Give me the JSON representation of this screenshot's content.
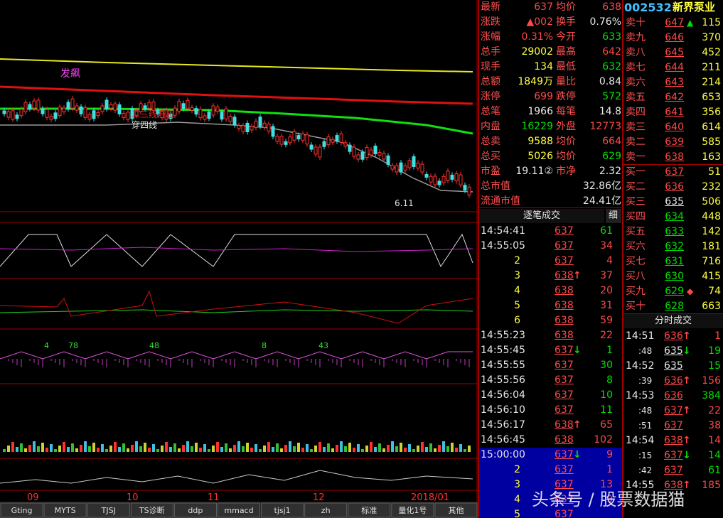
{
  "stock": {
    "code": "002532",
    "name": "新界泵业"
  },
  "quote": [
    [
      {
        "t": "最新"
      },
      {
        "t": "637",
        "c": "r"
      },
      {
        "t": "均价"
      },
      {
        "t": "638",
        "c": "r"
      }
    ],
    [
      {
        "t": "涨跌"
      },
      {
        "t": "▲002",
        "c": "r"
      },
      {
        "t": "换手"
      },
      {
        "t": "0.76%",
        "c": "w"
      }
    ],
    [
      {
        "t": "涨幅"
      },
      {
        "t": "0.31%",
        "c": "r"
      },
      {
        "t": "今开"
      },
      {
        "t": "633",
        "c": "g"
      }
    ],
    [
      {
        "t": "总手"
      },
      {
        "t": "29002",
        "c": "y"
      },
      {
        "t": "最高"
      },
      {
        "t": "642",
        "c": "r"
      }
    ],
    [
      {
        "t": "现手"
      },
      {
        "t": "134",
        "c": "y"
      },
      {
        "t": "最低"
      },
      {
        "t": "632",
        "c": "g"
      }
    ],
    [
      {
        "t": "总额"
      },
      {
        "t": "1849万",
        "c": "y"
      },
      {
        "t": "量比"
      },
      {
        "t": "0.84",
        "c": "w"
      }
    ],
    [
      {
        "t": "涨停"
      },
      {
        "t": "699",
        "c": "r"
      },
      {
        "t": "跌停"
      },
      {
        "t": "572",
        "c": "g"
      }
    ],
    [
      {
        "t": "总笔"
      },
      {
        "t": "1966",
        "c": "w"
      },
      {
        "t": "每笔"
      },
      {
        "t": "14.8",
        "c": "w"
      }
    ],
    [
      {
        "t": "内盘"
      },
      {
        "t": "16229",
        "c": "g"
      },
      {
        "t": "外盘"
      },
      {
        "t": "12773",
        "c": "r"
      }
    ],
    [
      {
        "t": "总卖"
      },
      {
        "t": "9588",
        "c": "y"
      },
      {
        "t": "均价"
      },
      {
        "t": "664",
        "c": "r"
      }
    ],
    [
      {
        "t": "总买"
      },
      {
        "t": "5026",
        "c": "y"
      },
      {
        "t": "均价"
      },
      {
        "t": "629",
        "c": "g"
      }
    ],
    [
      {
        "t": "市盈"
      },
      {
        "t": "19.11②",
        "c": "w"
      },
      {
        "t": "市净"
      },
      {
        "t": "2.32",
        "c": "w"
      }
    ],
    [
      {
        "t": "总市值"
      },
      {
        "t": "32.86亿",
        "c": "w"
      }
    ],
    [
      {
        "t": "流通市值"
      },
      {
        "t": "24.41亿",
        "c": "w"
      }
    ]
  ],
  "order_book": [
    {
      "name": "卖十",
      "price": "647",
      "c": "r",
      "mark": {
        "t": "▲",
        "c": "g"
      },
      "vol": "115"
    },
    {
      "name": "卖九",
      "price": "646",
      "c": "r",
      "vol": "370"
    },
    {
      "name": "卖八",
      "price": "645",
      "c": "r",
      "vol": "452"
    },
    {
      "name": "卖七",
      "price": "644",
      "c": "r",
      "vol": "211"
    },
    {
      "name": "卖六",
      "price": "643",
      "c": "r",
      "vol": "214"
    },
    {
      "name": "卖五",
      "price": "642",
      "c": "r",
      "vol": "653"
    },
    {
      "name": "卖四",
      "price": "641",
      "c": "r",
      "vol": "356"
    },
    {
      "name": "卖三",
      "price": "640",
      "c": "r",
      "vol": "614"
    },
    {
      "name": "卖二",
      "price": "639",
      "c": "r",
      "vol": "585"
    },
    {
      "name": "卖一",
      "price": "638",
      "c": "r",
      "vol": "163"
    },
    {
      "name": "买一",
      "price": "637",
      "c": "r",
      "vol": "51"
    },
    {
      "name": "买二",
      "price": "636",
      "c": "r",
      "vol": "232"
    },
    {
      "name": "买三",
      "price": "635",
      "c": "w",
      "vol": "506"
    },
    {
      "name": "买四",
      "price": "634",
      "c": "g",
      "vol": "448"
    },
    {
      "name": "买五",
      "price": "633",
      "c": "g",
      "vol": "142"
    },
    {
      "name": "买六",
      "price": "632",
      "c": "g",
      "vol": "181"
    },
    {
      "name": "买七",
      "price": "631",
      "c": "g",
      "vol": "716"
    },
    {
      "name": "买八",
      "price": "630",
      "c": "g",
      "vol": "415"
    },
    {
      "name": "买九",
      "price": "629",
      "c": "g",
      "mark": {
        "t": "◆",
        "c": "r"
      },
      "vol": "74"
    },
    {
      "name": "买十",
      "price": "628",
      "c": "g",
      "vol": "663"
    }
  ],
  "tick_header": {
    "title": "逐笔成交",
    "tab": "细"
  },
  "ticks": [
    {
      "time": "14:54:41",
      "price": "637",
      "c": "r",
      "vol": "61",
      "vc": "g"
    },
    {
      "time": "14:55:05",
      "price": "637",
      "c": "r",
      "vol": "34",
      "vc": "r"
    },
    {
      "time": "2",
      "price": "637",
      "c": "r",
      "vol": "4",
      "vc": "r"
    },
    {
      "time": "3",
      "price": "638",
      "c": "r",
      "arrow": {
        "t": "↑",
        "c": "r"
      },
      "vol": "37",
      "vc": "r"
    },
    {
      "time": "4",
      "price": "638",
      "c": "r",
      "vol": "20",
      "vc": "r"
    },
    {
      "time": "5",
      "price": "638",
      "c": "r",
      "vol": "31",
      "vc": "r"
    },
    {
      "time": "6",
      "price": "638",
      "c": "r",
      "vol": "59",
      "vc": "r"
    },
    {
      "time": "14:55:23",
      "price": "638",
      "c": "r",
      "vol": "22",
      "vc": "r"
    },
    {
      "time": "14:55:45",
      "price": "637",
      "c": "r",
      "arrow": {
        "t": "↓",
        "c": "g"
      },
      "vol": "1",
      "vc": "g"
    },
    {
      "time": "14:55:55",
      "price": "637",
      "c": "r",
      "vol": "30",
      "vc": "g"
    },
    {
      "time": "14:55:56",
      "price": "637",
      "c": "r",
      "vol": "8",
      "vc": "g"
    },
    {
      "time": "14:56:04",
      "price": "637",
      "c": "r",
      "vol": "10",
      "vc": "g"
    },
    {
      "time": "14:56:10",
      "price": "637",
      "c": "r",
      "vol": "11",
      "vc": "g"
    },
    {
      "time": "14:56:17",
      "price": "638",
      "c": "r",
      "arrow": {
        "t": "↑",
        "c": "r"
      },
      "vol": "65",
      "vc": "r"
    },
    {
      "time": "14:56:45",
      "price": "638",
      "c": "r",
      "vol": "102",
      "vc": "r"
    },
    {
      "time": "15:00:00",
      "price": "637",
      "c": "r",
      "arrow": {
        "t": "↓",
        "c": "g"
      },
      "vol": "9",
      "vc": "r",
      "hl": true
    },
    {
      "time": "2",
      "price": "637",
      "c": "r",
      "vol": "1",
      "vc": "r",
      "hl": true
    },
    {
      "time": "3",
      "price": "637",
      "c": "r",
      "vol": "13",
      "vc": "r",
      "hl": true
    },
    {
      "time": "4",
      "price": "637",
      "c": "r",
      "vol": "9",
      "vc": "r",
      "hl": true
    },
    {
      "time": "5",
      "price": "637",
      "c": "r",
      "hl": true
    }
  ],
  "minute_header": {
    "title": "分时成交"
  },
  "minute": [
    {
      "time": "14:51",
      "price": "636",
      "c": "r",
      "arrow": {
        "t": "↑",
        "c": "r"
      },
      "vol": "1",
      "vc": "r"
    },
    {
      "time": ":48",
      "price": "635",
      "c": "w",
      "arrow": {
        "t": "↓",
        "c": "g"
      },
      "vol": "19",
      "vc": "g"
    },
    {
      "time": "14:52",
      "price": "635",
      "c": "w",
      "vol": "15",
      "vc": "g"
    },
    {
      "time": ":39",
      "price": "636",
      "c": "r",
      "arrow": {
        "t": "↑",
        "c": "r"
      },
      "vol": "156",
      "vc": "r"
    },
    {
      "time": "14:53",
      "price": "636",
      "c": "r",
      "vol": "384",
      "vc": "g"
    },
    {
      "time": ":48",
      "price": "637",
      "c": "r",
      "arrow": {
        "t": "↑",
        "c": "r"
      },
      "vol": "22",
      "vc": "r"
    },
    {
      "time": ":51",
      "price": "637",
      "c": "r",
      "vol": "38",
      "vc": "r"
    },
    {
      "time": "14:54",
      "price": "638",
      "c": "r",
      "arrow": {
        "t": "↑",
        "c": "r"
      },
      "vol": "14",
      "vc": "r"
    },
    {
      "time": ":15",
      "price": "637",
      "c": "r",
      "arrow": {
        "t": "↓",
        "c": "g"
      },
      "vol": "14",
      "vc": "g"
    },
    {
      "time": ":42",
      "price": "637",
      "c": "r",
      "vol": "61",
      "vc": "g"
    },
    {
      "time": "14:55",
      "price": "638",
      "c": "r",
      "arrow": {
        "t": "↑",
        "c": "r"
      },
      "vol": "185",
      "vc": "r"
    }
  ],
  "chart": {
    "annotations": [
      "发飙",
      "二三线升起",
      "穿四线",
      "6.11"
    ],
    "panel_numbers": [
      "4",
      "78",
      "48",
      "8",
      "43"
    ],
    "x_labels": [
      "09",
      "10",
      "11",
      "12",
      "2018/01"
    ]
  },
  "tabs": [
    "Gting",
    "MYTS",
    "TJSJ",
    "TS诊断",
    "ddp",
    "mmacd",
    "tjsj1",
    "zh",
    "标准",
    "量化1号",
    "其他"
  ],
  "watermark": "头条号 / 股票数据猫"
}
